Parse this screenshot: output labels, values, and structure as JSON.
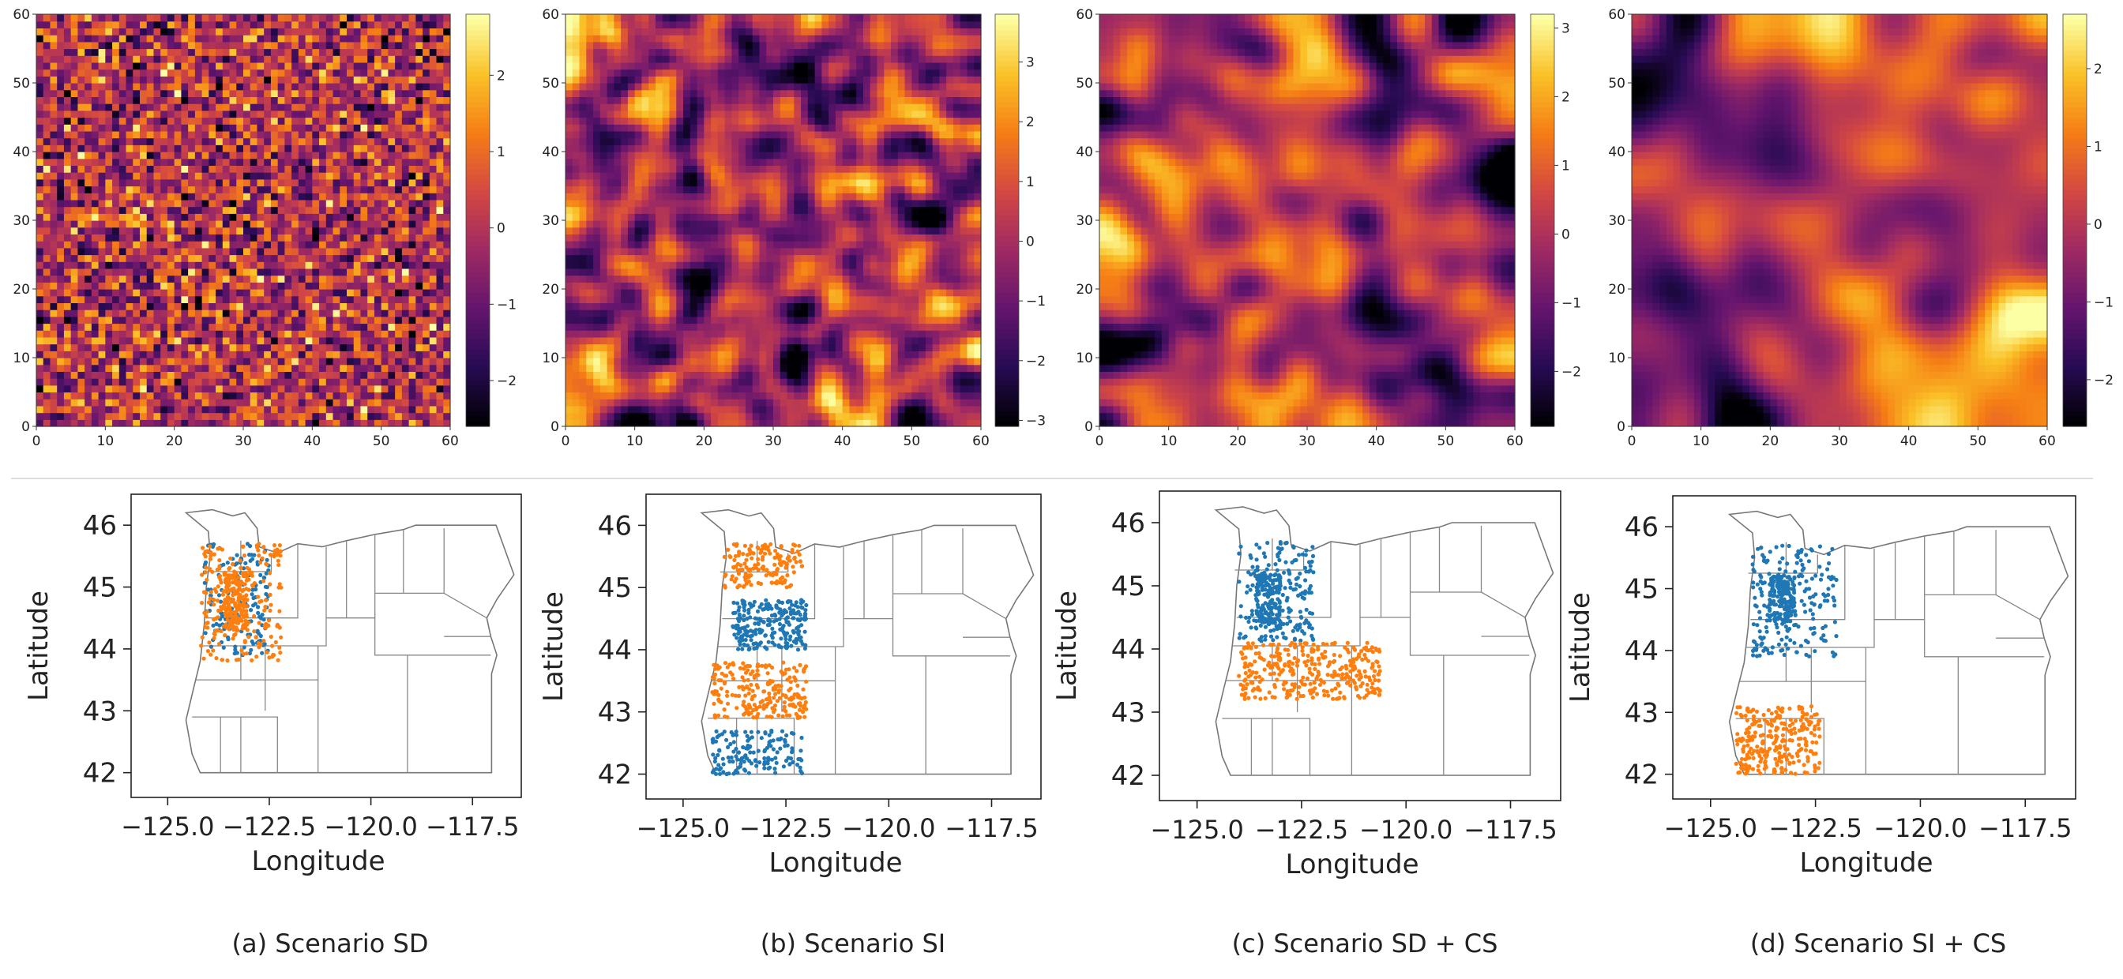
{
  "chart_data": [
    {
      "type": "heatmap",
      "title": "",
      "grid_size": 60,
      "smoothness": "none",
      "xlim": [
        0,
        60
      ],
      "ylim": [
        0,
        60
      ],
      "xticks": [
        0,
        10,
        20,
        30,
        40,
        50,
        60
      ],
      "yticks": [
        0,
        10,
        20,
        30,
        40,
        50,
        60
      ],
      "colormap": "inferno",
      "colorbar": {
        "range": [
          -2.6,
          2.8
        ],
        "ticks": [
          -2,
          -1,
          0,
          1,
          2
        ],
        "tick_labels": [
          "−2",
          "−1",
          "0",
          "1",
          "2"
        ]
      }
    },
    {
      "type": "heatmap",
      "title": "",
      "grid_size": 60,
      "smoothness": "low",
      "xlim": [
        0,
        60
      ],
      "ylim": [
        0,
        60
      ],
      "xticks": [
        0,
        10,
        20,
        30,
        40,
        50,
        60
      ],
      "yticks": [
        0,
        10,
        20,
        30,
        40,
        50,
        60
      ],
      "colormap": "inferno",
      "colorbar": {
        "range": [
          -3.1,
          3.8
        ],
        "ticks": [
          -3,
          -2,
          -1,
          0,
          1,
          2,
          3
        ],
        "tick_labels": [
          "−3",
          "−2",
          "−1",
          "0",
          "1",
          "2",
          "3"
        ]
      }
    },
    {
      "type": "heatmap",
      "title": "",
      "grid_size": 60,
      "smoothness": "medium",
      "xlim": [
        0,
        60
      ],
      "ylim": [
        0,
        60
      ],
      "xticks": [
        0,
        10,
        20,
        30,
        40,
        50,
        60
      ],
      "yticks": [
        0,
        10,
        20,
        30,
        40,
        50,
        60
      ],
      "colormap": "inferno",
      "colorbar": {
        "range": [
          -2.8,
          3.2
        ],
        "ticks": [
          -2,
          -1,
          0,
          1,
          2,
          3
        ],
        "tick_labels": [
          "−2",
          "−1",
          "0",
          "1",
          "2",
          "3"
        ]
      }
    },
    {
      "type": "heatmap",
      "title": "",
      "grid_size": 60,
      "smoothness": "high",
      "xlim": [
        0,
        60
      ],
      "ylim": [
        0,
        60
      ],
      "xticks": [
        0,
        10,
        20,
        30,
        40,
        50,
        60
      ],
      "yticks": [
        0,
        10,
        20,
        30,
        40,
        50,
        60
      ],
      "colormap": "inferno",
      "colorbar": {
        "range": [
          -2.6,
          2.7
        ],
        "ticks": [
          -2,
          -1,
          0,
          1,
          2
        ],
        "tick_labels": [
          "−2",
          "−1",
          "0",
          "1",
          "2"
        ]
      }
    },
    {
      "type": "scatter",
      "caption": "(a) Scenario SD",
      "xlabel": "Longitude",
      "ylabel": "Latitude",
      "xlim": [
        -125.9,
        -116.3
      ],
      "ylim": [
        41.6,
        46.5
      ],
      "xticks": [
        -125.0,
        -122.5
      ],
      "xtick_labels": [
        "−125.0",
        "−122.5"
      ],
      "extra_xticks": [
        -120.0,
        -117.5
      ],
      "extra_xtick_labels": [
        "−120.0",
        "−117.5"
      ],
      "yticks": [
        42,
        43,
        44,
        45,
        46
      ],
      "series": [
        {
          "color": "#1f77b4",
          "clusters": [
            {
              "lon_range": [
                -124.1,
                -122.5
              ],
              "lat_range": [
                43.9,
                45.7
              ],
              "n": 160
            }
          ]
        },
        {
          "color": "#ff7f0e",
          "clusters": [
            {
              "lon_range": [
                -124.2,
                -122.2
              ],
              "lat_range": [
                43.8,
                45.7
              ],
              "n": 380,
              "dense_core": [
                -123.6,
                -123.0,
                44.3,
                45.2
              ]
            }
          ]
        }
      ]
    },
    {
      "type": "scatter",
      "caption": "(b) Scenario SI",
      "xlabel": "Longitude",
      "ylabel": "Latitude",
      "xlim": [
        -125.9,
        -116.3
      ],
      "ylim": [
        41.6,
        46.5
      ],
      "xticks": [
        -125.0,
        -122.5,
        -120.0,
        -117.5
      ],
      "xtick_labels": [
        "−125.0",
        "−122.5",
        "−120.0",
        "−117.5"
      ],
      "yticks": [
        42,
        43,
        44,
        45,
        46
      ],
      "series": [
        {
          "color": "#1f77b4",
          "clusters": [
            {
              "lon_range": [
                -123.8,
                -122.0
              ],
              "lat_range": [
                44.0,
                44.8
              ],
              "n": 240
            },
            {
              "lon_range": [
                -124.3,
                -122.1
              ],
              "lat_range": [
                42.0,
                42.7
              ],
              "n": 150
            }
          ]
        },
        {
          "color": "#ff7f0e",
          "clusters": [
            {
              "lon_range": [
                -124.0,
                -122.1
              ],
              "lat_range": [
                45.0,
                45.7
              ],
              "n": 150
            },
            {
              "lon_range": [
                -124.3,
                -122.0
              ],
              "lat_range": [
                42.9,
                43.8
              ],
              "n": 230
            }
          ]
        }
      ]
    },
    {
      "type": "scatter",
      "caption": "(c) Scenario SD + CS",
      "xlabel": "Longitude",
      "ylabel": "Latitude",
      "xlim": [
        -125.9,
        -116.3
      ],
      "ylim": [
        41.6,
        46.5
      ],
      "xticks": [
        -125.0,
        -122.5,
        -120.0,
        -117.5
      ],
      "xtick_labels": [
        "−125.0",
        "−122.5",
        "−120.0",
        "−117.5"
      ],
      "yticks": [
        42,
        43,
        44,
        45,
        46
      ],
      "series": [
        {
          "color": "#1f77b4",
          "clusters": [
            {
              "lon_range": [
                -124.0,
                -122.2
              ],
              "lat_range": [
                44.1,
                45.7
              ],
              "n": 340,
              "dense_core": [
                -123.6,
                -123.0,
                44.3,
                45.2
              ]
            }
          ]
        },
        {
          "color": "#ff7f0e",
          "clusters": [
            {
              "lon_range": [
                -124.0,
                -120.6
              ],
              "lat_range": [
                43.2,
                44.1
              ],
              "n": 330
            }
          ]
        }
      ]
    },
    {
      "type": "scatter",
      "caption": "(d) Scenario SI + CS",
      "xlabel": "Longitude",
      "ylabel": "Latitude",
      "xlim": [
        -125.9,
        -116.3
      ],
      "ylim": [
        41.6,
        46.5
      ],
      "xticks": [
        -125.0,
        -122.5,
        -120.0,
        -117.5
      ],
      "xtick_labels": [
        "−125.0",
        "−122.5",
        "−120.0",
        "−117.5"
      ],
      "yticks": [
        42,
        43,
        44,
        45,
        46
      ],
      "series": [
        {
          "color": "#1f77b4",
          "clusters": [
            {
              "lon_range": [
                -124.0,
                -122.0
              ],
              "lat_range": [
                43.9,
                45.7
              ],
              "n": 360,
              "dense_core": [
                -123.6,
                -123.0,
                44.4,
                45.2
              ]
            }
          ]
        },
        {
          "color": "#ff7f0e",
          "clusters": [
            {
              "lon_range": [
                -124.4,
                -122.4
              ],
              "lat_range": [
                42.0,
                43.1
              ],
              "n": 260
            }
          ]
        }
      ]
    }
  ],
  "captions": [
    "(a) Scenario SD",
    "(b) Scenario SI",
    "(c) Scenario SD + CS",
    "(d) Scenario SI + CS"
  ],
  "axis_labels": {
    "x": "Longitude",
    "y": "Latitude"
  }
}
